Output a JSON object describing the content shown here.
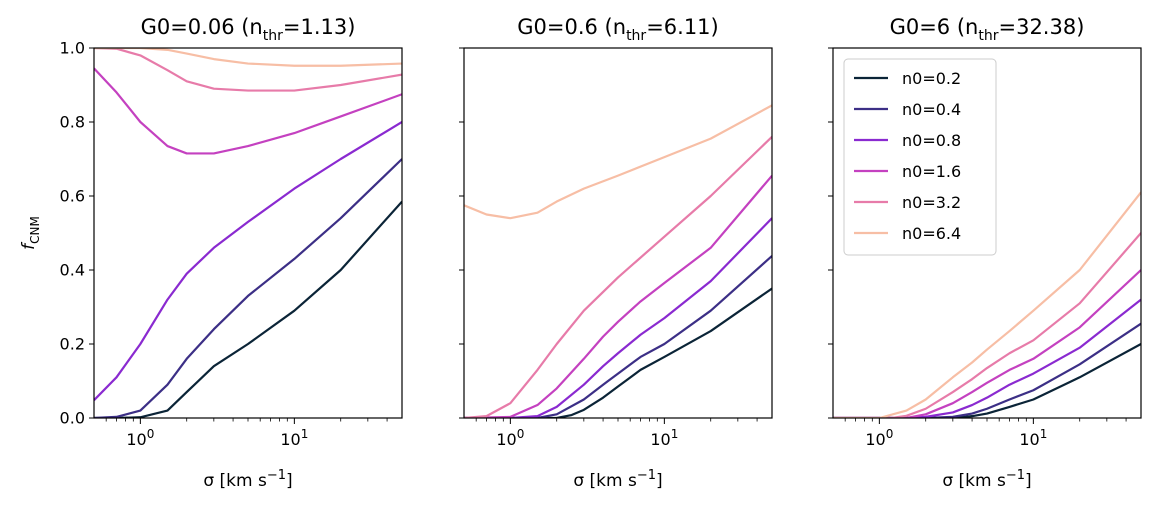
{
  "chart_data": [
    {
      "type": "line",
      "title": "G0=0.06 (n",
      "title_sub": "thr",
      "title_tail": "=1.13)",
      "xlabel": "σ [km s",
      "xlabel_sup": "−1",
      "xlabel_tail": "]",
      "ylabel": "f",
      "ylabel_sub": "CNM",
      "xscale": "log",
      "xlim": [
        0.5,
        50
      ],
      "ylim": [
        0,
        1
      ],
      "xticks": [
        "10",
        "10"
      ],
      "xtick_exps": [
        "0",
        "1"
      ],
      "yticks": [
        "0.0",
        "0.2",
        "0.4",
        "0.6",
        "0.8",
        "1.0"
      ],
      "series": [
        {
          "name": "n0=0.2",
          "color": "#0b2437",
          "x": [
            0.5,
            0.7,
            1.0,
            1.5,
            2,
            3,
            5,
            10,
            20,
            50
          ],
          "y": [
            0.0,
            0.0,
            0.002,
            0.02,
            0.07,
            0.14,
            0.2,
            0.29,
            0.4,
            0.585
          ]
        },
        {
          "name": "n0=0.4",
          "color": "#3c2f86",
          "x": [
            0.5,
            0.7,
            1.0,
            1.5,
            2,
            3,
            5,
            10,
            20,
            50
          ],
          "y": [
            0.0,
            0.003,
            0.02,
            0.09,
            0.16,
            0.24,
            0.33,
            0.43,
            0.54,
            0.7
          ]
        },
        {
          "name": "n0=0.8",
          "color": "#8a2ad0",
          "x": [
            0.5,
            0.7,
            1.0,
            1.5,
            2,
            3,
            5,
            10,
            20,
            50
          ],
          "y": [
            0.048,
            0.11,
            0.2,
            0.32,
            0.39,
            0.46,
            0.53,
            0.62,
            0.7,
            0.8
          ]
        },
        {
          "name": "n0=1.6",
          "color": "#c441c0",
          "x": [
            0.5,
            0.7,
            1.0,
            1.5,
            2,
            3,
            5,
            10,
            20,
            50
          ],
          "y": [
            0.945,
            0.88,
            0.8,
            0.735,
            0.715,
            0.715,
            0.735,
            0.77,
            0.815,
            0.875
          ]
        },
        {
          "name": "n0=3.2",
          "color": "#e77ba9",
          "x": [
            0.5,
            0.7,
            1.0,
            1.5,
            2,
            3,
            5,
            10,
            20,
            50
          ],
          "y": [
            1.0,
            0.998,
            0.98,
            0.94,
            0.91,
            0.89,
            0.885,
            0.885,
            0.9,
            0.928
          ]
        },
        {
          "name": "n0=6.4",
          "color": "#f7bea5",
          "x": [
            0.5,
            0.7,
            1.0,
            1.5,
            2,
            3,
            5,
            10,
            20,
            50
          ],
          "y": [
            1.0,
            1.0,
            1.0,
            0.995,
            0.985,
            0.97,
            0.958,
            0.952,
            0.952,
            0.958
          ]
        }
      ]
    },
    {
      "type": "line",
      "title": "G0=0.6 (n",
      "title_sub": "thr",
      "title_tail": "=6.11)",
      "xlabel": "σ [km s",
      "xlabel_sup": "−1",
      "xlabel_tail": "]",
      "xscale": "log",
      "xlim": [
        0.5,
        50
      ],
      "ylim": [
        0,
        1
      ],
      "xticks": [
        "10",
        "10"
      ],
      "xtick_exps": [
        "0",
        "1"
      ],
      "series": [
        {
          "name": "n0=0.2",
          "color": "#0b2437",
          "x": [
            0.5,
            1.0,
            2,
            2.5,
            3,
            4,
            5,
            7,
            10,
            20,
            50
          ],
          "y": [
            0.0,
            0.0,
            0.0,
            0.008,
            0.022,
            0.055,
            0.085,
            0.13,
            0.165,
            0.235,
            0.35
          ]
        },
        {
          "name": "n0=0.4",
          "color": "#3c2f86",
          "x": [
            0.5,
            1.0,
            1.5,
            2,
            3,
            4,
            5,
            7,
            10,
            20,
            50
          ],
          "y": [
            0.0,
            0.0,
            0.0,
            0.01,
            0.05,
            0.09,
            0.12,
            0.165,
            0.2,
            0.29,
            0.438
          ]
        },
        {
          "name": "n0=0.8",
          "color": "#8a2ad0",
          "x": [
            0.5,
            1.0,
            1.5,
            2,
            3,
            4,
            5,
            7,
            10,
            20,
            50
          ],
          "y": [
            0.0,
            0.0,
            0.005,
            0.03,
            0.09,
            0.14,
            0.175,
            0.225,
            0.27,
            0.37,
            0.54
          ]
        },
        {
          "name": "n0=1.6",
          "color": "#c441c0",
          "x": [
            0.5,
            1.0,
            1.5,
            2,
            3,
            4,
            5,
            7,
            10,
            20,
            50
          ],
          "y": [
            0.0,
            0.003,
            0.035,
            0.08,
            0.16,
            0.22,
            0.26,
            0.315,
            0.365,
            0.46,
            0.655
          ]
        },
        {
          "name": "n0=3.2",
          "color": "#e77ba9",
          "x": [
            0.5,
            0.7,
            1.0,
            1.5,
            2,
            3,
            5,
            10,
            20,
            50
          ],
          "y": [
            0.0,
            0.005,
            0.04,
            0.13,
            0.2,
            0.29,
            0.38,
            0.49,
            0.6,
            0.76
          ]
        },
        {
          "name": "n0=6.4",
          "color": "#f7bea5",
          "x": [
            0.5,
            0.7,
            1.0,
            1.5,
            2,
            3,
            5,
            10,
            20,
            50
          ],
          "y": [
            0.575,
            0.55,
            0.54,
            0.555,
            0.585,
            0.62,
            0.655,
            0.705,
            0.755,
            0.845
          ]
        }
      ]
    },
    {
      "type": "line",
      "title": "G0=6 (n",
      "title_sub": "thr",
      "title_tail": "=32.38)",
      "xlabel": "σ [km s",
      "xlabel_sup": "−1",
      "xlabel_tail": "]",
      "xscale": "log",
      "xlim": [
        0.5,
        50
      ],
      "ylim": [
        0,
        1
      ],
      "xticks": [
        "10",
        "10"
      ],
      "xtick_exps": [
        "0",
        "1"
      ],
      "legend": "top-left",
      "series": [
        {
          "name": "n0=0.2",
          "color": "#0b2437",
          "x": [
            0.5,
            2,
            3,
            4,
            5,
            7,
            10,
            20,
            50
          ],
          "y": [
            0.0,
            0.0,
            0.0,
            0.005,
            0.012,
            0.03,
            0.05,
            0.11,
            0.2
          ]
        },
        {
          "name": "n0=0.4",
          "color": "#3c2f86",
          "x": [
            0.5,
            2,
            3,
            4,
            5,
            7,
            10,
            20,
            50
          ],
          "y": [
            0.0,
            0.0,
            0.003,
            0.012,
            0.025,
            0.05,
            0.075,
            0.145,
            0.255
          ]
        },
        {
          "name": "n0=0.8",
          "color": "#8a2ad0",
          "x": [
            0.5,
            1.5,
            2,
            3,
            4,
            5,
            7,
            10,
            20,
            50
          ],
          "y": [
            0.0,
            0.0,
            0.003,
            0.015,
            0.035,
            0.055,
            0.09,
            0.12,
            0.19,
            0.32
          ]
        },
        {
          "name": "n0=1.6",
          "color": "#c441c0",
          "x": [
            0.5,
            1.5,
            2,
            3,
            4,
            5,
            7,
            10,
            20,
            50
          ],
          "y": [
            0.0,
            0.0,
            0.01,
            0.04,
            0.07,
            0.095,
            0.13,
            0.16,
            0.245,
            0.4
          ]
        },
        {
          "name": "n0=3.2",
          "color": "#e77ba9",
          "x": [
            0.5,
            1.2,
            1.5,
            2,
            3,
            4,
            5,
            7,
            10,
            20,
            50
          ],
          "y": [
            0.0,
            0.0,
            0.006,
            0.025,
            0.07,
            0.105,
            0.135,
            0.175,
            0.21,
            0.31,
            0.5
          ]
        },
        {
          "name": "n0=6.4",
          "color": "#f7bea5",
          "x": [
            0.5,
            1.0,
            1.5,
            2,
            3,
            4,
            5,
            7,
            10,
            20,
            50
          ],
          "y": [
            0.0,
            0.0,
            0.02,
            0.05,
            0.11,
            0.15,
            0.185,
            0.235,
            0.29,
            0.4,
            0.61
          ]
        }
      ]
    }
  ]
}
